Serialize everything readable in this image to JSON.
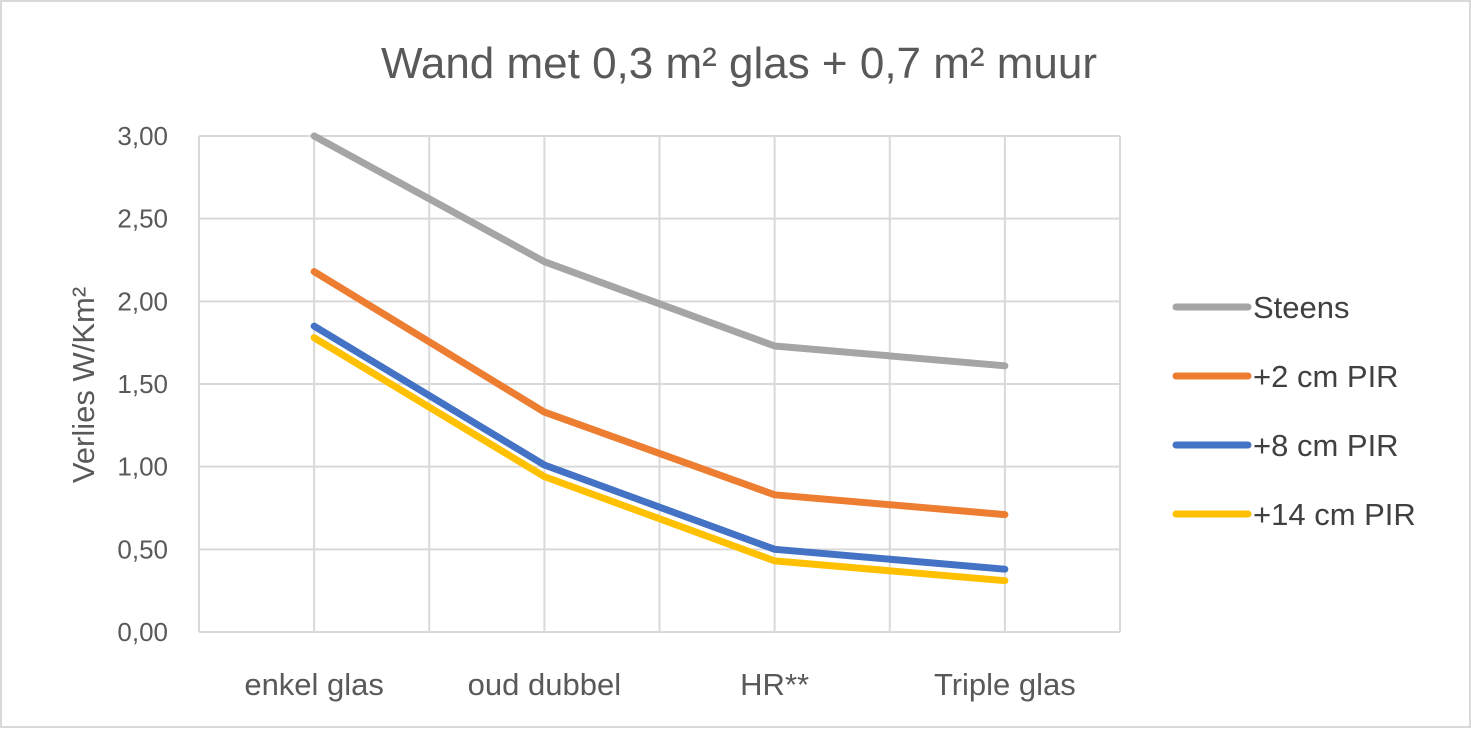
{
  "chart_data": {
    "type": "line",
    "title": "Wand met 0,3 m² glas + 0,7 m² muur",
    "ylabel": "Verlies W/Km²",
    "xlabel": "",
    "categories": [
      "enkel glas",
      "oud dubbel",
      "HR**",
      "Triple glas"
    ],
    "y_ticks": [
      "0,00",
      "0,50",
      "1,00",
      "1,50",
      "2,00",
      "2,50",
      "3,00"
    ],
    "ylim": [
      0,
      3
    ],
    "grid": true,
    "legend_position": "right",
    "series": [
      {
        "name": "Steens",
        "color": "#a5a5a5",
        "values": [
          3.03,
          2.24,
          1.73,
          1.61
        ]
      },
      {
        "name": "+2 cm PIR",
        "color": "#ed7d31",
        "values": [
          2.18,
          1.33,
          0.83,
          0.71
        ]
      },
      {
        "name": "+8 cm PIR",
        "color": "#4472c4",
        "values": [
          1.85,
          1.01,
          0.5,
          0.38
        ]
      },
      {
        "name": "+14 cm PIR",
        "color": "#ffc000",
        "values": [
          1.78,
          0.94,
          0.43,
          0.31
        ]
      }
    ]
  }
}
